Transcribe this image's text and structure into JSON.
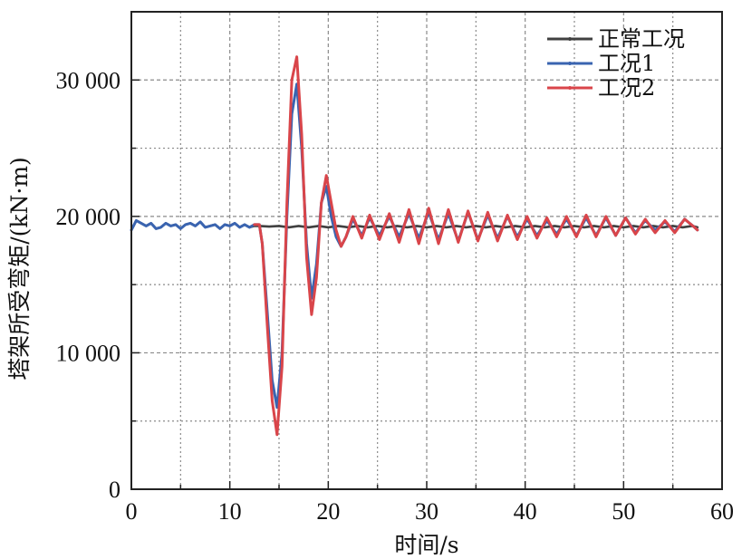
{
  "chart_data": {
    "type": "line",
    "xlabel": "时间/s",
    "ylabel": "塔架所受弯矩/(kN·m)",
    "xlim": [
      0,
      60
    ],
    "ylim": [
      0,
      35000
    ],
    "x_ticks": [
      0,
      10,
      20,
      30,
      40,
      50,
      60
    ],
    "x_tick_labels": [
      "0",
      "10",
      "20",
      "30",
      "40",
      "50",
      "60"
    ],
    "y_ticks": [
      0,
      10000,
      20000,
      30000
    ],
    "y_tick_labels": [
      "0",
      "10 000",
      "20 000",
      "30 000"
    ],
    "grid": true,
    "legend_position": "top-right",
    "series": [
      {
        "name": "正常工况",
        "color": "#404040",
        "x": [
          0,
          0.5,
          1,
          1.5,
          2,
          2.5,
          3,
          3.5,
          4,
          4.5,
          5,
          5.5,
          6,
          6.5,
          7,
          7.5,
          8,
          8.5,
          9,
          9.5,
          10,
          10.5,
          11,
          11.5,
          12,
          12.5,
          13,
          14,
          15,
          16,
          17,
          18,
          19,
          20,
          21,
          22,
          23,
          24,
          25,
          26,
          27,
          28,
          29,
          30,
          31,
          32,
          33,
          34,
          35,
          36,
          37,
          38,
          39,
          40,
          41,
          42,
          43,
          44,
          45,
          46,
          47,
          48,
          49,
          50,
          51,
          52,
          53,
          54,
          55,
          56,
          57,
          57.5
        ],
        "y": [
          19000,
          19700,
          19500,
          19300,
          19500,
          19100,
          19200,
          19500,
          19300,
          19400,
          19100,
          19400,
          19500,
          19300,
          19600,
          19200,
          19300,
          19400,
          19100,
          19400,
          19300,
          19500,
          19200,
          19400,
          19200,
          19300,
          19300,
          19250,
          19300,
          19200,
          19300,
          19200,
          19300,
          19200,
          19300,
          19200,
          19300,
          19200,
          19300,
          19200,
          19300,
          19200,
          19300,
          19200,
          19300,
          19200,
          19300,
          19200,
          19300,
          19200,
          19300,
          19200,
          19300,
          19200,
          19300,
          19200,
          19300,
          19200,
          19300,
          19200,
          19300,
          19200,
          19300,
          19200,
          19300,
          19200,
          19300,
          19200,
          19300,
          19200,
          19300,
          19200
        ]
      },
      {
        "name": "工况1",
        "color": "#3a64b0",
        "x": [
          0,
          0.5,
          1,
          1.5,
          2,
          2.5,
          3,
          3.5,
          4,
          4.5,
          5,
          5.5,
          6,
          6.5,
          7,
          7.5,
          8,
          8.5,
          9,
          9.5,
          10,
          10.5,
          11,
          11.5,
          12,
          12.5,
          13,
          13.3,
          13.8,
          14.3,
          14.8,
          15.3,
          15.8,
          16.3,
          16.8,
          17.3,
          17.8,
          18.3,
          18.8,
          19.3,
          19.8,
          20.3,
          20.8,
          21.3,
          21.8,
          22.5,
          23.4,
          24.2,
          25.2,
          26.2,
          27.2,
          28.2,
          29.2,
          30.2,
          31.2,
          32.2,
          33.2,
          34.2,
          35.2,
          36.2,
          37.2,
          38.2,
          39.2,
          40.2,
          41.2,
          42.2,
          43.2,
          44.2,
          45.2,
          46.2,
          47.2,
          48.2,
          49.2,
          50.2,
          51.2,
          52.2,
          53.2,
          54.2,
          55.2,
          56.2,
          57.2,
          57.5
        ],
        "y": [
          19000,
          19700,
          19500,
          19300,
          19500,
          19100,
          19200,
          19500,
          19300,
          19400,
          19100,
          19400,
          19500,
          19300,
          19600,
          19200,
          19300,
          19400,
          19100,
          19400,
          19300,
          19500,
          19200,
          19400,
          19200,
          19400,
          19400,
          18000,
          13000,
          8000,
          6000,
          10000,
          20000,
          27500,
          29700,
          25000,
          18000,
          14000,
          16500,
          21000,
          22200,
          20000,
          18500,
          17800,
          18500,
          19800,
          18600,
          19900,
          18600,
          20000,
          18500,
          20200,
          18400,
          20300,
          18300,
          20200,
          18200,
          20300,
          18300,
          20100,
          18400,
          20000,
          18500,
          19800,
          18600,
          19700,
          18700,
          19800,
          18600,
          19900,
          18600,
          19900,
          18600,
          19900,
          18800,
          19700,
          19000,
          19600,
          18900,
          19800,
          19200,
          19000
        ]
      },
      {
        "name": "工况2",
        "color": "#d9454a",
        "x": [
          12.5,
          13,
          13.3,
          13.8,
          14.3,
          14.8,
          15.3,
          15.8,
          16.3,
          16.8,
          17.3,
          17.8,
          18.3,
          18.8,
          19.3,
          19.8,
          20.3,
          20.8,
          21.3,
          21.8,
          22.5,
          23.4,
          24.2,
          25.2,
          26.2,
          27.2,
          28.2,
          29.2,
          30.2,
          31.2,
          32.2,
          33.2,
          34.2,
          35.2,
          36.2,
          37.2,
          38.2,
          39.2,
          40.2,
          41.2,
          42.2,
          43.2,
          44.2,
          45.2,
          46.2,
          47.2,
          48.2,
          49.2,
          50.2,
          51.2,
          52.2,
          53.2,
          54.2,
          55.2,
          56.2,
          57.2,
          57.5
        ],
        "y": [
          19400,
          19400,
          18000,
          12000,
          6500,
          4000,
          9000,
          21000,
          30000,
          31700,
          26000,
          17000,
          12800,
          15500,
          21000,
          23000,
          21000,
          19000,
          17800,
          18500,
          20000,
          18400,
          20100,
          18300,
          20200,
          18100,
          20500,
          18000,
          20600,
          18000,
          20500,
          18100,
          20400,
          18200,
          20300,
          18200,
          20100,
          18300,
          20000,
          18400,
          19900,
          18500,
          20000,
          18500,
          20100,
          18500,
          20000,
          18600,
          19900,
          18700,
          19800,
          18800,
          19700,
          18800,
          19800,
          19200,
          19000
        ]
      }
    ]
  }
}
